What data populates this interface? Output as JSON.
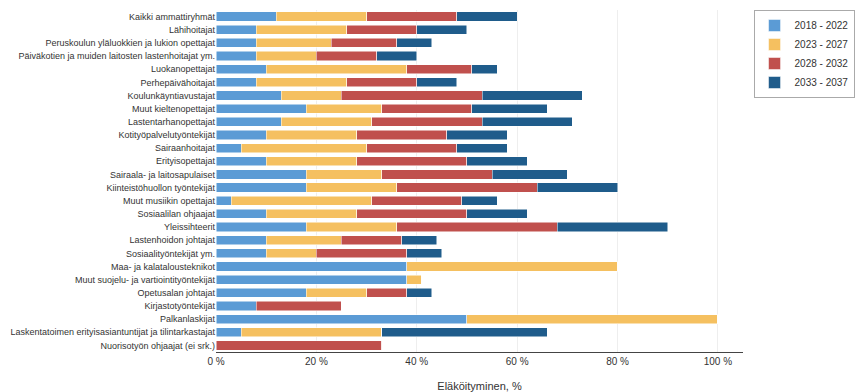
{
  "chart_data": {
    "type": "bar",
    "orientation": "horizontal",
    "stacked": true,
    "xlabel": "Eläköityminen, %",
    "categories": [
      "Kaikki ammattiryhmät",
      "Lähihoitajat",
      "Peruskoulun yläluokkien ja lukion opettajat",
      "Päiväkotien ja muiden laitosten lastenhoitajat ym.",
      "Luokanopettajat",
      "Perhepäivähoitajat",
      "Koulunkäyntiavustajat",
      "Muut kieltenopettajat",
      "Lastentarhanopettajat",
      "Kotityöpalvelutyöntekijät",
      "Sairaanhoitajat",
      "Erityisopettajat",
      "Sairaala- ja laitosapulaiset",
      "Kiinteistöhuollon työntekijät",
      "Muut musiikin opettajat",
      "Sosiaalilan ohjaajat",
      "Yleissihteerit",
      "Lastenhoidon johtajat",
      "Sosiaalityöntekijät ym.",
      "Maa- ja kalatalousteknikot",
      "Muut suojelu- ja vartiointityöntekijät",
      "Opetusalan johtajat",
      "Kirjastotyöntekijät",
      "Palkanlaskijat",
      "Laskentatoimen erityisasiantuntijat ja tilintarkastajat",
      "Nuorisotyön ohjaajat (ei srk.)"
    ],
    "series": [
      {
        "name": "2018 - 2022",
        "color": "#5B9BD5",
        "values": [
          12,
          8,
          8,
          8,
          10,
          8,
          13,
          18,
          13,
          10,
          5,
          10,
          18,
          18,
          3,
          10,
          18,
          10,
          10,
          38,
          38,
          18,
          8,
          50,
          5,
          0
        ]
      },
      {
        "name": "2023 - 2027",
        "color": "#F5C060",
        "values": [
          18,
          18,
          15,
          12,
          28,
          18,
          12,
          15,
          18,
          18,
          25,
          18,
          15,
          18,
          28,
          18,
          18,
          15,
          10,
          42,
          3,
          12,
          0,
          50,
          28,
          0
        ]
      },
      {
        "name": "2028 - 2032",
        "color": "#C0504D",
        "values": [
          18,
          14,
          13,
          12,
          13,
          14,
          28,
          18,
          22,
          18,
          18,
          22,
          22,
          28,
          18,
          22,
          32,
          12,
          18,
          0,
          0,
          8,
          17,
          0,
          0,
          33
        ]
      },
      {
        "name": "2033 - 2037",
        "color": "#1F5C8B",
        "values": [
          12,
          10,
          7,
          8,
          5,
          8,
          20,
          15,
          18,
          12,
          10,
          12,
          15,
          16,
          7,
          12,
          22,
          7,
          7,
          0,
          0,
          5,
          0,
          0,
          33,
          0
        ]
      }
    ],
    "xlim": [
      0,
      105
    ],
    "xticks": [
      {
        "value": 0,
        "label": "0 %"
      },
      {
        "value": 20,
        "label": "20 %"
      },
      {
        "value": 40,
        "label": "40 %"
      },
      {
        "value": 60,
        "label": "60 %"
      },
      {
        "value": 80,
        "label": "80 %"
      },
      {
        "value": 100,
        "label": "100 %"
      }
    ],
    "grid": true,
    "legend": "upper right"
  }
}
